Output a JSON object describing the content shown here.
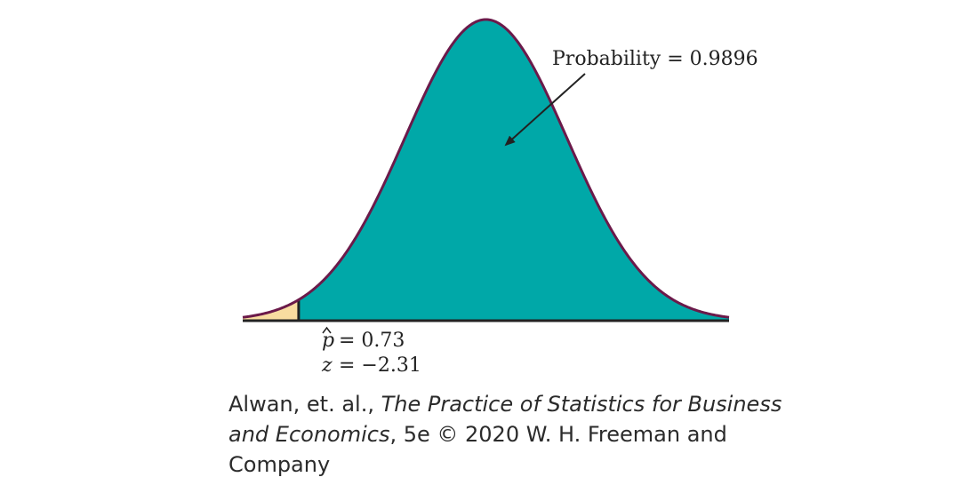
{
  "chart_data": {
    "type": "area",
    "distribution": "normal",
    "z_range": [
      -3.0,
      3.0
    ],
    "cutoff_z": -2.31,
    "regions": [
      {
        "z_from": -3.0,
        "z_to": -2.31,
        "color": "#f8dca0"
      },
      {
        "z_from": -2.31,
        "z_to": 3.0,
        "color": "#00a8a8"
      }
    ],
    "curve_color": "#6b1a4a",
    "axis_color": "#222222",
    "annotations": {
      "probability": "Probability = 0.9896",
      "phat_symbol": "p",
      "phat_value": "= 0.73",
      "z_symbol": "z",
      "z_value": "= −2.31"
    }
  },
  "caption": {
    "line1_a": "Alwan, et. al., ",
    "line1_b": "The Practice of Statistics for Business",
    "line2_a": "and Economics",
    "line2_b": ", 5e © 2020 W. H. Freeman and",
    "line3": "Company"
  }
}
